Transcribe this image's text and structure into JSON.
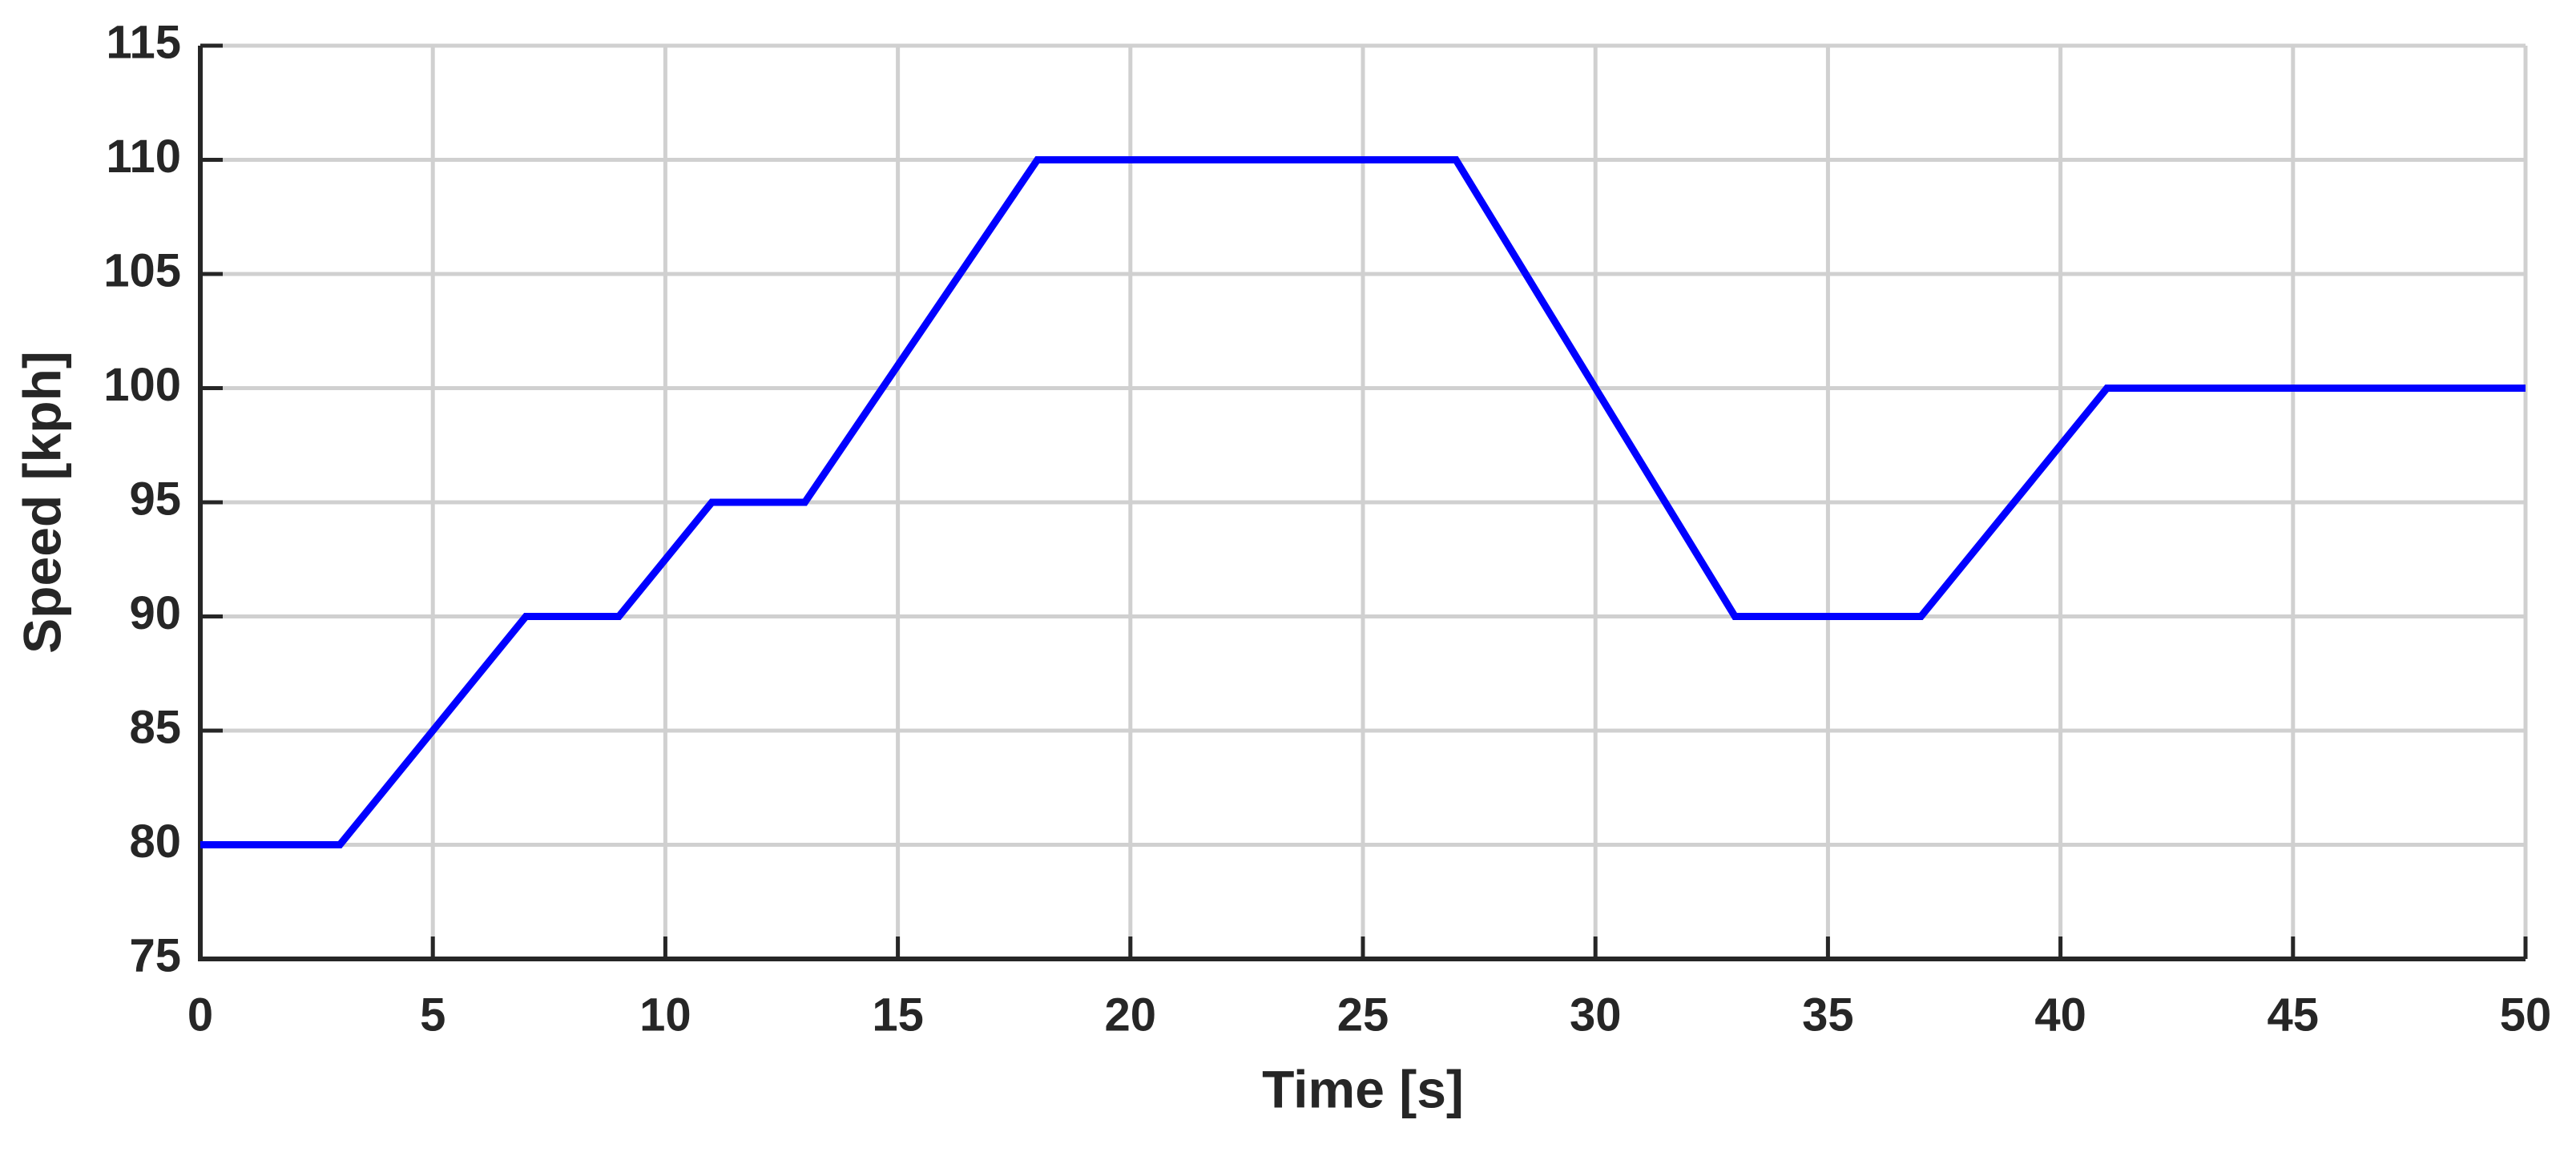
{
  "chart_data": {
    "type": "line",
    "x_label": "Time [s]",
    "y_label": "Speed [kph]",
    "x": [
      0,
      3,
      7,
      9,
      11,
      13,
      18,
      27,
      33,
      37,
      41,
      50
    ],
    "series": [
      {
        "color": "#0000ff",
        "values": [
          80,
          80,
          90,
          90,
          95,
          95,
          110,
          110,
          90,
          90,
          100,
          100
        ]
      }
    ],
    "xlim": [
      0,
      50
    ],
    "xticks": [
      0,
      5,
      10,
      15,
      20,
      25,
      30,
      35,
      40,
      45,
      50
    ],
    "ylim": [
      75,
      115
    ],
    "yticks": [
      75,
      80,
      85,
      90,
      95,
      100,
      105,
      110,
      115
    ],
    "grid": true
  }
}
